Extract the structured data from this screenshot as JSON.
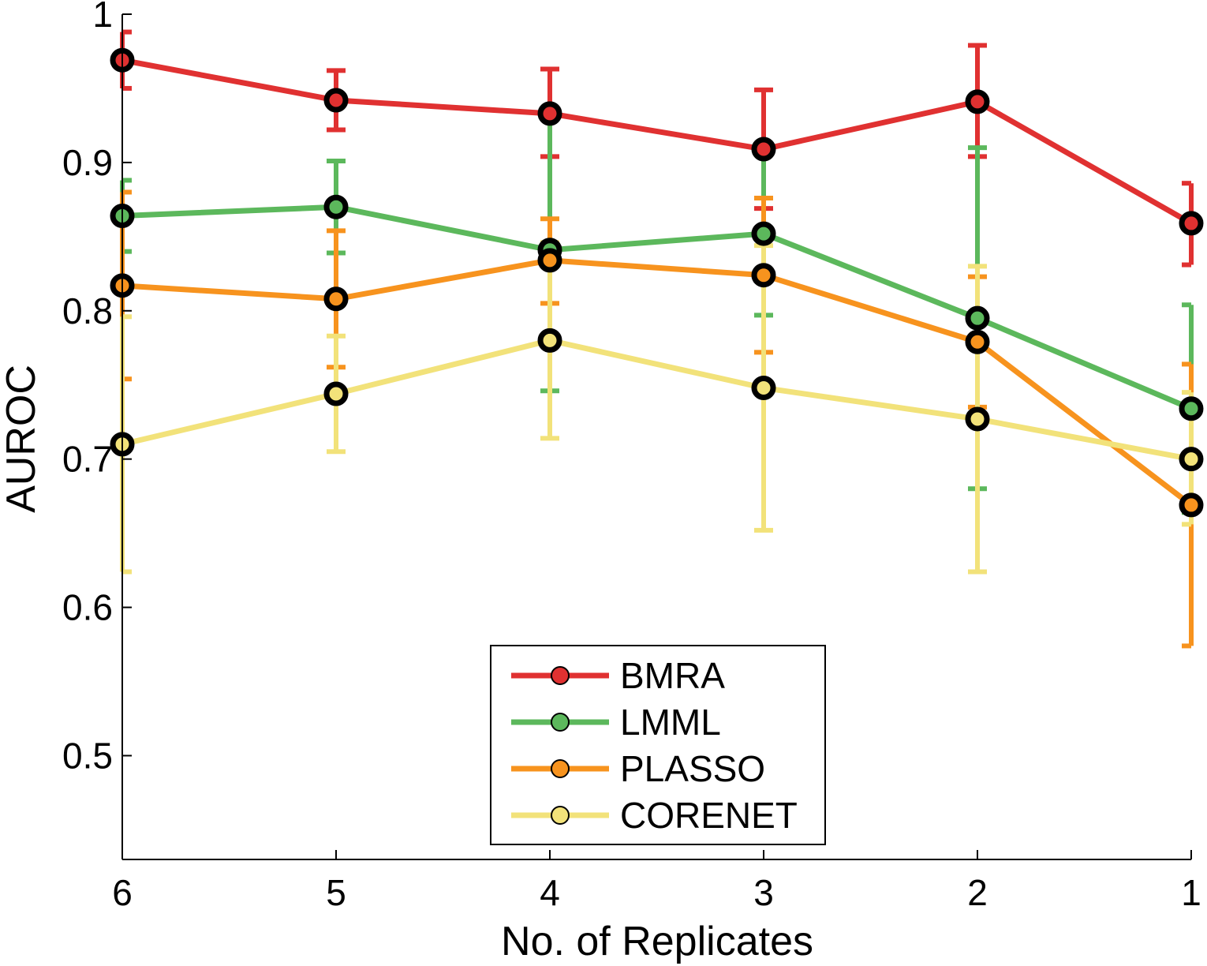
{
  "chart_data": {
    "type": "line",
    "title": "",
    "xlabel": "No. of Replicates",
    "ylabel": "AUROC",
    "categories": [
      "6",
      "5",
      "4",
      "3",
      "2",
      "1"
    ],
    "ylim": [
      0.43,
      1.0
    ],
    "yticks": [
      0.5,
      0.6,
      0.7,
      0.8,
      0.9,
      1
    ],
    "ytick_labels": [
      "0.5",
      "0.6",
      "0.7",
      "0.8",
      "0.9",
      "1"
    ],
    "grid": false,
    "legend_position": "bottom-center",
    "series": [
      {
        "name": "BMRA",
        "color": "#e03131",
        "values": [
          0.969,
          0.942,
          0.933,
          0.909,
          0.941,
          0.859
        ],
        "err_low": [
          0.95,
          0.922,
          0.904,
          0.869,
          0.904,
          0.831
        ],
        "err_high": [
          0.988,
          0.962,
          0.963,
          0.949,
          0.979,
          0.886
        ]
      },
      {
        "name": "LMML",
        "color": "#5cb85c",
        "values": [
          0.864,
          0.87,
          0.841,
          0.852,
          0.795,
          0.734
        ],
        "err_low": [
          0.84,
          0.839,
          0.746,
          0.797,
          0.68,
          0.664
        ],
        "err_high": [
          0.888,
          0.901,
          0.935,
          0.908,
          0.91,
          0.804
        ]
      },
      {
        "name": "PLASSO",
        "color": "#f7931e",
        "values": [
          0.817,
          0.808,
          0.834,
          0.824,
          0.779,
          0.669
        ],
        "err_low": [
          0.754,
          0.762,
          0.805,
          0.772,
          0.735,
          0.574
        ],
        "err_high": [
          0.88,
          0.854,
          0.862,
          0.876,
          0.823,
          0.764
        ]
      },
      {
        "name": "CORENET",
        "color": "#f2e27a",
        "values": [
          0.71,
          0.744,
          0.78,
          0.748,
          0.727,
          0.7
        ],
        "err_low": [
          0.624,
          0.705,
          0.714,
          0.652,
          0.624,
          0.656
        ],
        "err_high": [
          0.796,
          0.783,
          0.846,
          0.844,
          0.83,
          0.745
        ]
      }
    ]
  }
}
